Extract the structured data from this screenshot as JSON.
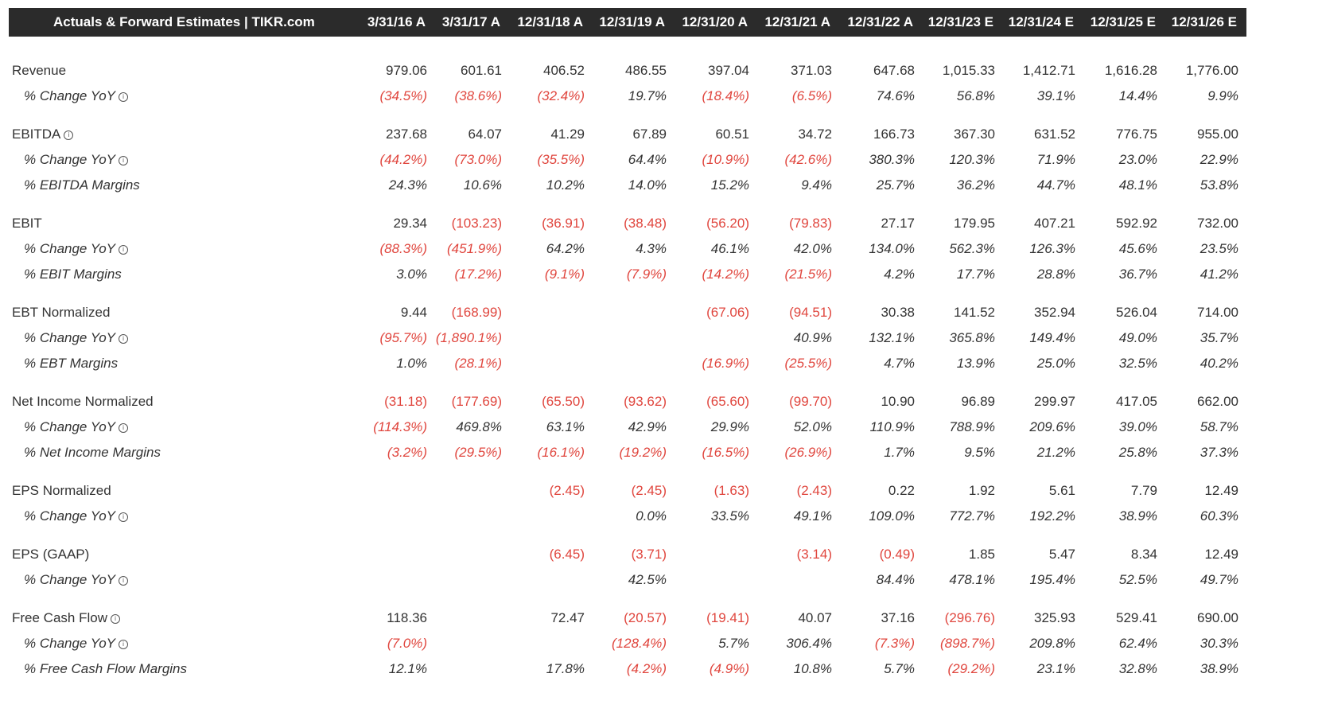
{
  "header": {
    "title": "Actuals & Forward Estimates | TIKR.com",
    "columns": [
      "3/31/16 A",
      "3/31/17 A",
      "12/31/18 A",
      "12/31/19 A",
      "12/31/20 A",
      "12/31/21 A",
      "12/31/22 A",
      "12/31/23 E",
      "12/31/24 E",
      "12/31/25 E",
      "12/31/26 E"
    ]
  },
  "table": {
    "groups": [
      {
        "label": "Revenue",
        "cells": [
          "979.06",
          "601.61",
          "406.52",
          "486.55",
          "397.04",
          "371.03",
          "647.68",
          "1,015.33",
          "1,412.71",
          "1,616.28",
          "1,776.00"
        ],
        "sub": [
          {
            "label": "% Change YoY",
            "info": true,
            "cells": [
              "(34.5%)",
              "(38.6%)",
              "(32.4%)",
              "19.7%",
              "(18.4%)",
              "(6.5%)",
              "74.6%",
              "56.8%",
              "39.1%",
              "14.4%",
              "9.9%"
            ]
          }
        ]
      },
      {
        "label": "EBITDA",
        "info": true,
        "cells": [
          "237.68",
          "64.07",
          "41.29",
          "67.89",
          "60.51",
          "34.72",
          "166.73",
          "367.30",
          "631.52",
          "776.75",
          "955.00"
        ],
        "sub": [
          {
            "label": "% Change YoY",
            "info": true,
            "cells": [
              "(44.2%)",
              "(73.0%)",
              "(35.5%)",
              "64.4%",
              "(10.9%)",
              "(42.6%)",
              "380.3%",
              "120.3%",
              "71.9%",
              "23.0%",
              "22.9%"
            ]
          },
          {
            "label": "% EBITDA Margins",
            "cells": [
              "24.3%",
              "10.6%",
              "10.2%",
              "14.0%",
              "15.2%",
              "9.4%",
              "25.7%",
              "36.2%",
              "44.7%",
              "48.1%",
              "53.8%"
            ]
          }
        ]
      },
      {
        "label": "EBIT",
        "cells": [
          "29.34",
          "(103.23)",
          "(36.91)",
          "(38.48)",
          "(56.20)",
          "(79.83)",
          "27.17",
          "179.95",
          "407.21",
          "592.92",
          "732.00"
        ],
        "sub": [
          {
            "label": "% Change YoY",
            "info": true,
            "cells": [
              "(88.3%)",
              "(451.9%)",
              "64.2%",
              "4.3%",
              "46.1%",
              "42.0%",
              "134.0%",
              "562.3%",
              "126.3%",
              "45.6%",
              "23.5%"
            ]
          },
          {
            "label": "% EBIT Margins",
            "cells": [
              "3.0%",
              "(17.2%)",
              "(9.1%)",
              "(7.9%)",
              "(14.2%)",
              "(21.5%)",
              "4.2%",
              "17.7%",
              "28.8%",
              "36.7%",
              "41.2%"
            ]
          }
        ]
      },
      {
        "label": "EBT Normalized",
        "cells": [
          "9.44",
          "(168.99)",
          null,
          null,
          "(67.06)",
          "(94.51)",
          "30.38",
          "141.52",
          "352.94",
          "526.04",
          "714.00"
        ],
        "sub": [
          {
            "label": "% Change YoY",
            "info": true,
            "cells": [
              "(95.7%)",
              "(1,890.1%)",
              null,
              null,
              null,
              "40.9%",
              "132.1%",
              "365.8%",
              "149.4%",
              "49.0%",
              "35.7%"
            ]
          },
          {
            "label": "% EBT Margins",
            "cells": [
              "1.0%",
              "(28.1%)",
              null,
              null,
              "(16.9%)",
              "(25.5%)",
              "4.7%",
              "13.9%",
              "25.0%",
              "32.5%",
              "40.2%"
            ]
          }
        ]
      },
      {
        "label": "Net Income Normalized",
        "cells": [
          "(31.18)",
          "(177.69)",
          "(65.50)",
          "(93.62)",
          "(65.60)",
          "(99.70)",
          "10.90",
          "96.89",
          "299.97",
          "417.05",
          "662.00"
        ],
        "sub": [
          {
            "label": "% Change YoY",
            "info": true,
            "cells": [
              "(114.3%)",
              "469.8%",
              "63.1%",
              "42.9%",
              "29.9%",
              "52.0%",
              "110.9%",
              "788.9%",
              "209.6%",
              "39.0%",
              "58.7%"
            ]
          },
          {
            "label": "% Net Income Margins",
            "cells": [
              "(3.2%)",
              "(29.5%)",
              "(16.1%)",
              "(19.2%)",
              "(16.5%)",
              "(26.9%)",
              "1.7%",
              "9.5%",
              "21.2%",
              "25.8%",
              "37.3%"
            ]
          }
        ]
      },
      {
        "label": "EPS Normalized",
        "cells": [
          null,
          null,
          "(2.45)",
          "(2.45)",
          "(1.63)",
          "(2.43)",
          "0.22",
          "1.92",
          "5.61",
          "7.79",
          "12.49"
        ],
        "sub": [
          {
            "label": "% Change YoY",
            "info": true,
            "cells": [
              null,
              null,
              null,
              "0.0%",
              "33.5%",
              "49.1%",
              "109.0%",
              "772.7%",
              "192.2%",
              "38.9%",
              "60.3%"
            ]
          }
        ]
      },
      {
        "label": "EPS (GAAP)",
        "cells": [
          null,
          null,
          "(6.45)",
          "(3.71)",
          null,
          "(3.14)",
          "(0.49)",
          "1.85",
          "5.47",
          "8.34",
          "12.49"
        ],
        "sub": [
          {
            "label": "% Change YoY",
            "info": true,
            "cells": [
              null,
              null,
              null,
              "42.5%",
              null,
              null,
              "84.4%",
              "478.1%",
              "195.4%",
              "52.5%",
              "49.7%"
            ]
          }
        ]
      },
      {
        "label": "Free Cash Flow",
        "info": true,
        "cells": [
          "118.36",
          null,
          "72.47",
          "(20.57)",
          "(19.41)",
          "40.07",
          "37.16",
          "(296.76)",
          "325.93",
          "529.41",
          "690.00"
        ],
        "sub": [
          {
            "label": "% Change YoY",
            "info": true,
            "cells": [
              "(7.0%)",
              null,
              null,
              "(128.4%)",
              "5.7%",
              "306.4%",
              "(7.3%)",
              "(898.7%)",
              "209.8%",
              "62.4%",
              "30.3%"
            ]
          },
          {
            "label": "% Free Cash Flow Margins",
            "cells": [
              "12.1%",
              null,
              "17.8%",
              "(4.2%)",
              "(4.9%)",
              "10.8%",
              "5.7%",
              "(29.2%)",
              "23.1%",
              "32.8%",
              "38.9%"
            ]
          }
        ]
      }
    ]
  }
}
